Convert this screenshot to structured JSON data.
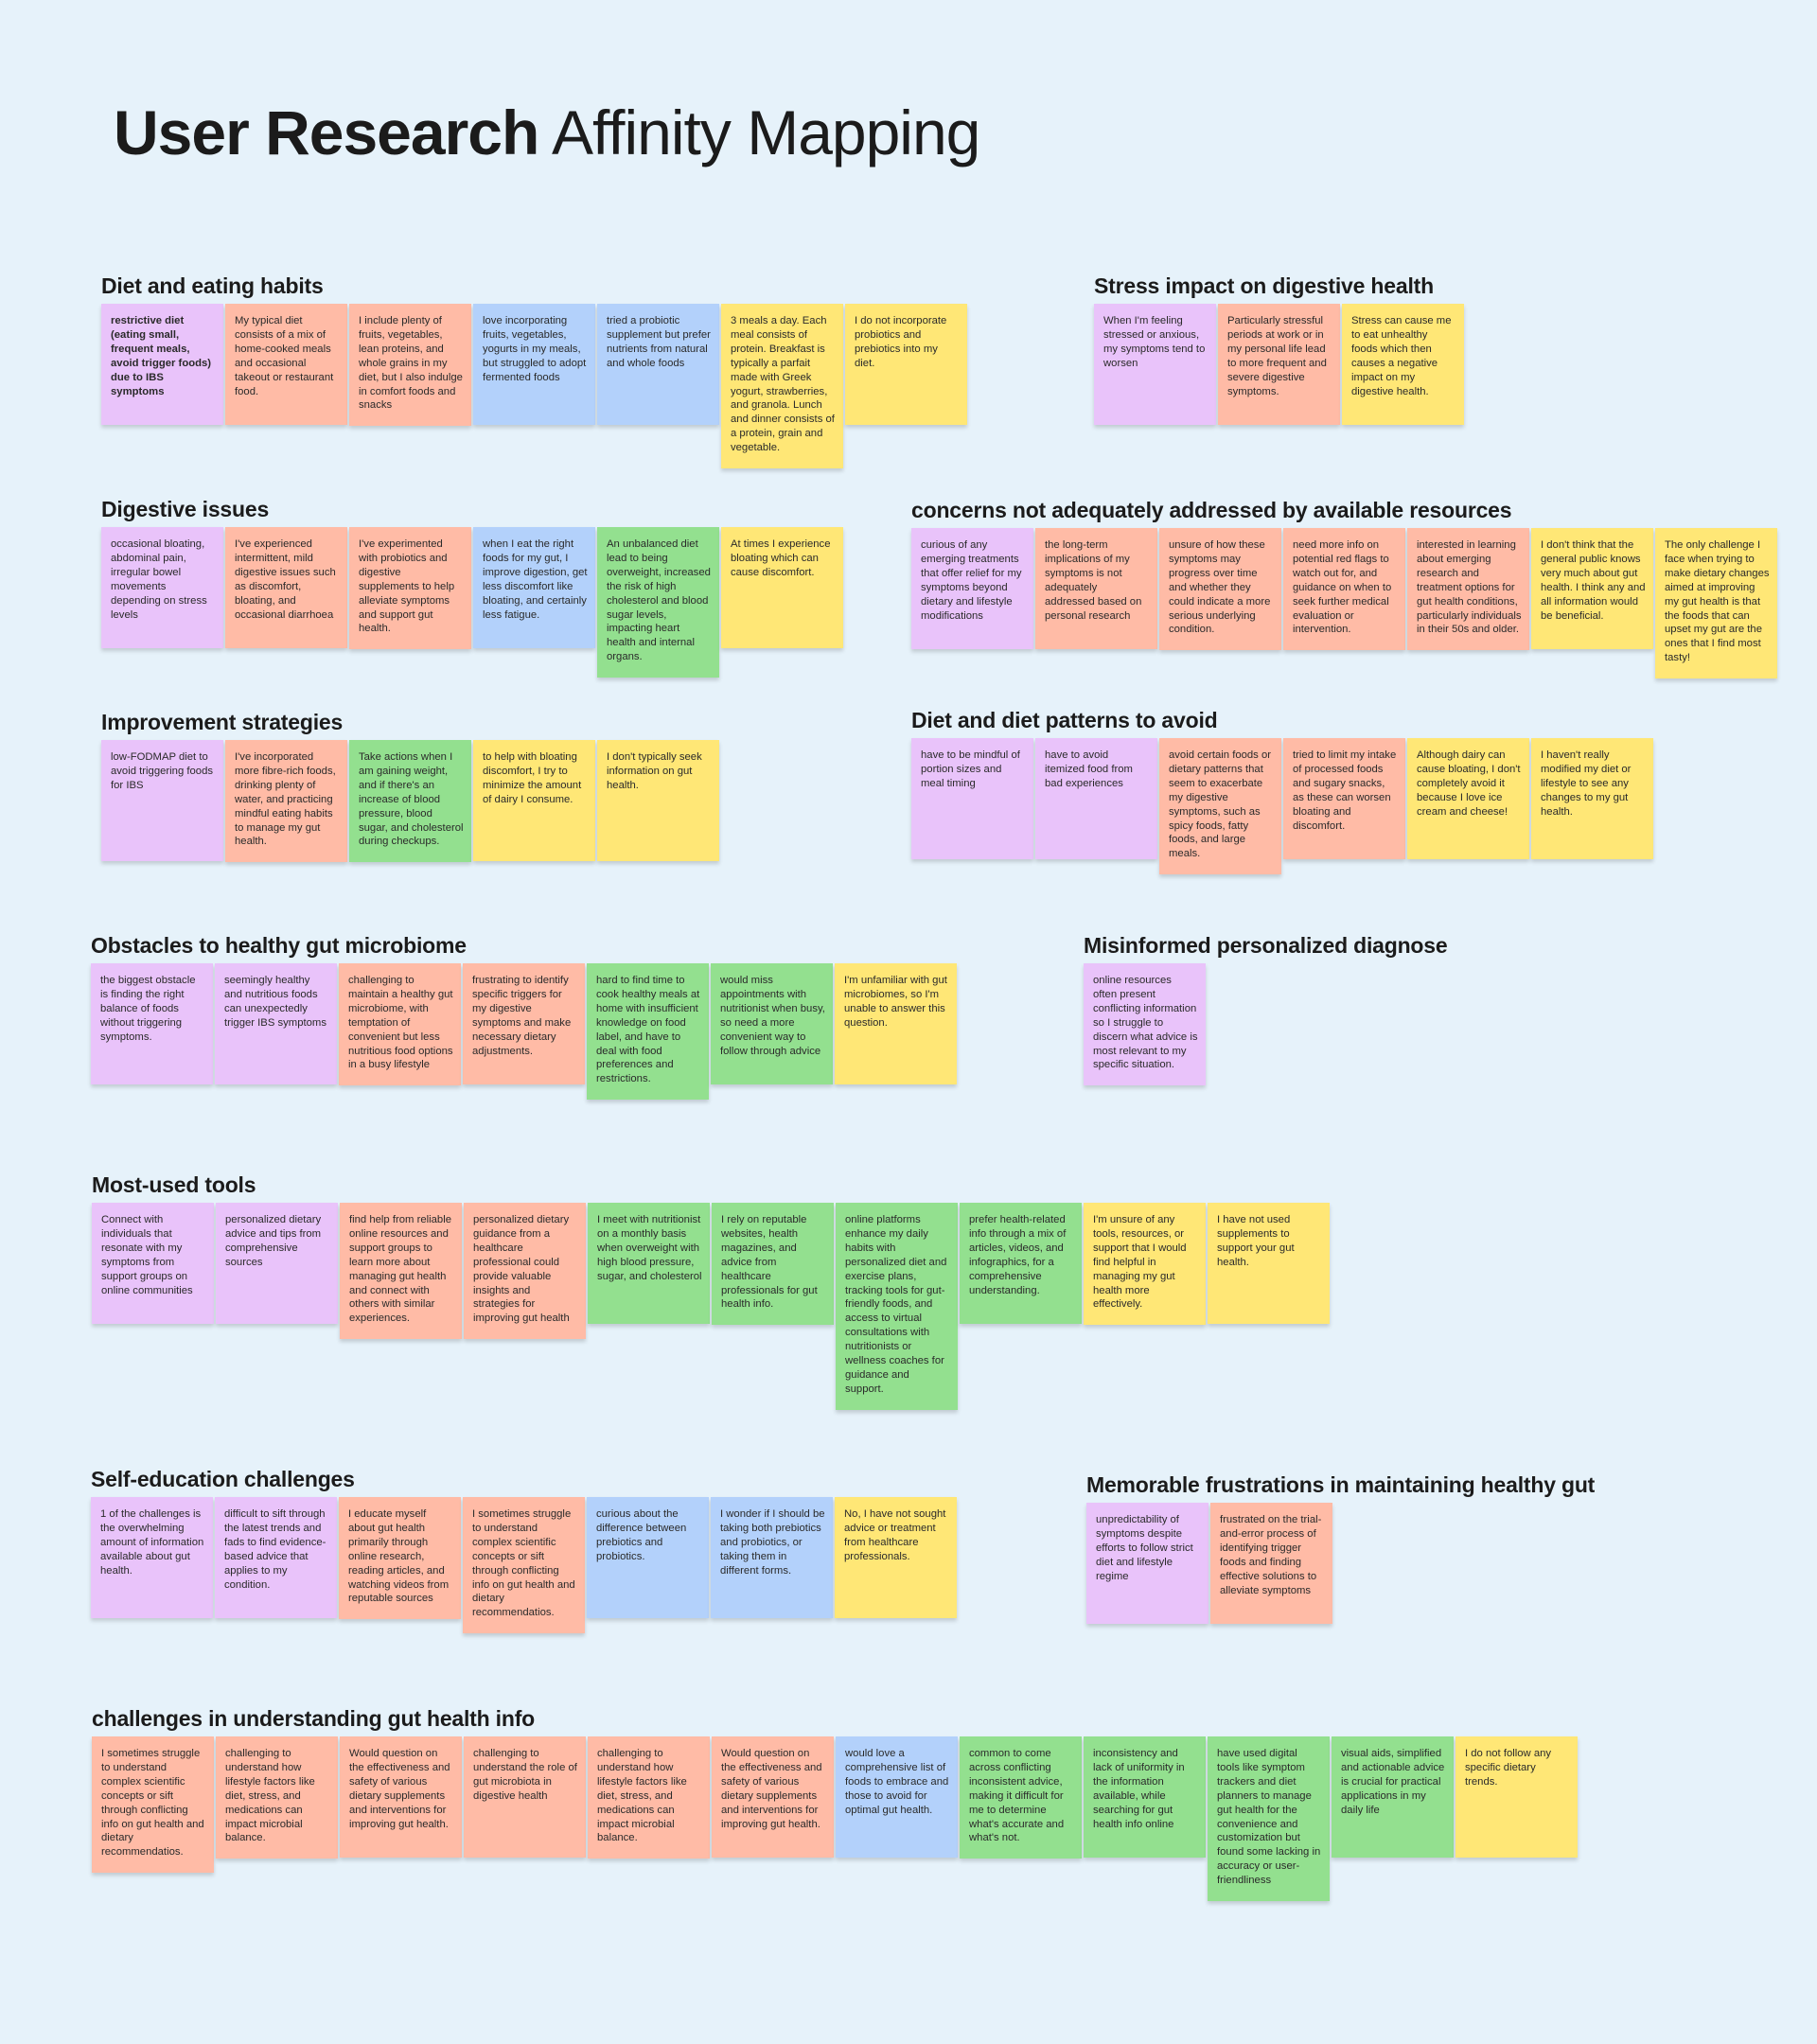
{
  "title": {
    "bold": "User Research",
    "rest": "Affinity Mapping"
  },
  "colors": {
    "background": "#e6f2fa",
    "purple": "#e9c3fa",
    "salmon": "#ffbba6",
    "blue": "#b3d1fb",
    "green": "#93e08f",
    "yellow": "#ffe776"
  },
  "clusters": [
    {
      "id": "diet-eating-habits",
      "heading": "Diet and eating habits",
      "notes": [
        {
          "color": "purple",
          "bold": true,
          "text": "restrictive diet (eating small, frequent meals, avoid trigger foods) due to IBS symptoms"
        },
        {
          "color": "salmon",
          "text": "My typical diet consists of a mix of home-cooked meals and occasional takeout or restaurant food."
        },
        {
          "color": "salmon",
          "text": "I include plenty of fruits, vegetables, lean proteins, and whole grains in my diet, but I also indulge in comfort foods and snacks"
        },
        {
          "color": "blue",
          "text": "love incorporating fruits, vegetables, yogurts in my meals, but struggled to adopt fermented foods"
        },
        {
          "color": "blue",
          "text": "tried a probiotic supplement but prefer nutrients from natural and whole foods"
        },
        {
          "color": "yellow",
          "text": "3 meals a day. Each meal consists of protein. Breakfast is typically a parfait made with Greek yogurt, strawberries, and granola. Lunch and dinner consists of a protein, grain and vegetable."
        },
        {
          "color": "yellow",
          "text": "I do not incorporate probiotics and prebiotics into my diet."
        }
      ]
    },
    {
      "id": "stress-impact",
      "heading": "Stress impact on digestive health",
      "notes": [
        {
          "color": "purple",
          "text": "When I'm feeling stressed or anxious, my symptoms tend to worsen"
        },
        {
          "color": "salmon",
          "text": "Particularly stressful periods at work or in my personal life lead to more frequent and severe digestive symptoms."
        },
        {
          "color": "yellow",
          "text": "Stress can cause me to eat unhealthy foods which then causes a negative impact on my digestive health."
        }
      ]
    },
    {
      "id": "digestive-issues",
      "heading": "Digestive issues",
      "notes": [
        {
          "color": "purple",
          "text": "occasional bloating, abdominal pain, irregular bowel movements depending on stress levels"
        },
        {
          "color": "salmon",
          "text": "I've experienced intermittent, mild digestive issues such as discomfort, bloating, and occasional diarrhoea"
        },
        {
          "color": "salmon",
          "text": "I've experimented with probiotics and digestive supplements to help alleviate symptoms and support gut health."
        },
        {
          "color": "blue",
          "text": "when I eat the right foods for my gut, I improve digestion, get less discomfort like bloating, and certainly less fatigue."
        },
        {
          "color": "green",
          "text": "An unbalanced diet lead to being overweight, increased the risk of high cholesterol and blood sugar levels, impacting heart health and internal organs."
        },
        {
          "color": "yellow",
          "text": "At times I experience bloating which can cause discomfort."
        }
      ]
    },
    {
      "id": "concerns-not-addressed",
      "heading": "concerns not adequately addressed by available resources",
      "notes": [
        {
          "color": "purple",
          "text": "curious of any emerging treatments that offer relief for my symptoms beyond dietary and lifestyle modifications"
        },
        {
          "color": "salmon",
          "text": "the long-term implications of my symptoms is not adequately addressed based on personal research"
        },
        {
          "color": "salmon",
          "text": "unsure of how these symptoms may progress over time and whether they could indicate a more serious underlying condition."
        },
        {
          "color": "salmon",
          "text": "need more info on potential red flags to watch out for, and guidance on when to seek further medical evaluation or intervention."
        },
        {
          "color": "salmon",
          "text": "interested in learning about emerging research and treatment options for gut health conditions, particularly individuals in their 50s and older."
        },
        {
          "color": "yellow",
          "text": "I don't think that the general public knows very much about gut health. I think any and all information would be beneficial."
        },
        {
          "color": "yellow",
          "text": "The only challenge I face when trying to make dietary changes aimed at improving my gut health is that the foods that can upset my gut are the ones that I find most tasty!"
        }
      ]
    },
    {
      "id": "improvement-strategies",
      "heading": "Improvement strategies",
      "notes": [
        {
          "color": "purple",
          "text": "low-FODMAP diet to avoid triggering foods for IBS"
        },
        {
          "color": "salmon",
          "text": "I've incorporated more fibre-rich foods, drinking plenty of water, and practicing mindful eating habits to manage my gut health."
        },
        {
          "color": "green",
          "text": "Take actions when I am gaining weight, and if there's an increase of blood pressure, blood sugar, and cholesterol during checkups."
        },
        {
          "color": "yellow",
          "text": "to help with bloating discomfort, I try to minimize the amount of dairy I consume."
        },
        {
          "color": "yellow",
          "text": "I don't typically seek information on gut health."
        }
      ]
    },
    {
      "id": "diet-patterns-avoid",
      "heading": "Diet and diet patterns to avoid",
      "notes": [
        {
          "color": "purple",
          "text": "have to be mindful of portion sizes and meal timing"
        },
        {
          "color": "purple",
          "text": "have to avoid itemized food from bad experiences"
        },
        {
          "color": "salmon",
          "text": "avoid certain foods or dietary patterns that seem to exacerbate my digestive symptoms, such as spicy foods, fatty foods, and large meals."
        },
        {
          "color": "salmon",
          "text": "tried to limit my intake of processed foods and sugary snacks, as these can worsen bloating and discomfort."
        },
        {
          "color": "yellow",
          "text": "Although dairy can cause bloating, I don't completely avoid it because I love ice cream and cheese!"
        },
        {
          "color": "yellow",
          "text": "I haven't really modified my diet or lifestyle to see any changes to my gut health."
        }
      ]
    },
    {
      "id": "obstacles-microbiome",
      "heading": "Obstacles to healthy gut microbiome",
      "notes": [
        {
          "color": "purple",
          "text": "the biggest obstacle is finding the right balance of foods without triggering symptoms."
        },
        {
          "color": "purple",
          "text": "seemingly healthy and nutritious foods can unexpectedly trigger IBS symptoms"
        },
        {
          "color": "salmon",
          "text": "challenging to maintain a healthy gut microbiome, with temptation of convenient but less nutritious food options in a busy lifestyle"
        },
        {
          "color": "salmon",
          "text": "frustrating to identify specific triggers for my digestive symptoms and make necessary dietary adjustments."
        },
        {
          "color": "green",
          "text": "hard to find time to cook healthy meals at home with insufficient knowledge on food label, and have to deal with food preferences and restrictions."
        },
        {
          "color": "green",
          "text": "would miss appointments with nutritionist when busy, so need a more convenient way to follow through advice"
        },
        {
          "color": "yellow",
          "text": "I'm unfamiliar with gut microbiomes, so I'm unable to answer this question."
        }
      ]
    },
    {
      "id": "misinformed-diagnose",
      "heading": "Misinformed personalized diagnose",
      "notes": [
        {
          "color": "purple",
          "text": "online resources often present conflicting information so I struggle to discern what advice is most relevant to my specific situation."
        }
      ]
    },
    {
      "id": "most-used-tools",
      "heading": "Most-used tools",
      "notes": [
        {
          "color": "purple",
          "text": "Connect with individuals that resonate with my symptoms from support groups on online communities"
        },
        {
          "color": "purple",
          "text": "personalized dietary advice and tips from comprehensive sources"
        },
        {
          "color": "salmon",
          "text": "find help from reliable online resources and support groups to learn more about managing gut health and connect with others with similar experiences."
        },
        {
          "color": "salmon",
          "text": "personalized dietary guidance from a healthcare professional could provide valuable insights and strategies for improving gut health"
        },
        {
          "color": "green",
          "text": "I meet with nutritionist on a monthly basis when overweight with high blood pressure, sugar, and cholesterol"
        },
        {
          "color": "green",
          "text": "I rely on reputable websites, health magazines, and advice from healthcare professionals for gut health info."
        },
        {
          "color": "green",
          "text": "online platforms enhance my daily habits with personalized diet and exercise plans, tracking tools for gut-friendly foods, and access to virtual consultations with nutritionists or wellness coaches for guidance and support."
        },
        {
          "color": "green",
          "text": "prefer health-related info through a mix of articles, videos, and infographics, for a comprehensive understanding."
        },
        {
          "color": "yellow",
          "text": "I'm unsure of any tools, resources, or support that I would find helpful in managing my gut health more effectively."
        },
        {
          "color": "yellow",
          "text": "I have not used supplements to support your gut health."
        }
      ]
    },
    {
      "id": "self-education",
      "heading": "Self-education challenges",
      "notes": [
        {
          "color": "purple",
          "text": "1 of the challenges is the overwhelming amount of information available about gut health."
        },
        {
          "color": "purple",
          "text": "difficult to sift through the latest trends and fads to find evidence-based advice that applies to my condition."
        },
        {
          "color": "salmon",
          "text": "I educate myself about gut health primarily through online research, reading articles, and watching videos from reputable sources"
        },
        {
          "color": "salmon",
          "text": "I sometimes struggle to understand complex scientific concepts or sift through conflicting info on gut health and dietary recommendatios."
        },
        {
          "color": "blue",
          "text": "curious about the difference between prebiotics and probiotics."
        },
        {
          "color": "blue",
          "text": "I wonder if I should be taking both prebiotics and probiotics, or taking them in different forms."
        },
        {
          "color": "yellow",
          "text": "No, I have not sought advice or treatment from healthcare professionals."
        }
      ]
    },
    {
      "id": "memorable-frustrations",
      "heading": "Memorable frustrations in maintaining healthy gut",
      "notes": [
        {
          "color": "purple",
          "text": "unpredictability of symptoms despite efforts to follow strict diet and lifestyle regime"
        },
        {
          "color": "salmon",
          "text": "frustrated on the trial-and-error process of identifying trigger foods and finding effective solutions to alleviate symptoms"
        }
      ]
    },
    {
      "id": "understanding-info",
      "heading": "challenges in understanding gut health info",
      "notes": [
        {
          "color": "salmon",
          "text": "I sometimes struggle to understand complex scientific concepts or sift through conflicting info on gut health and dietary recommendatios."
        },
        {
          "color": "salmon",
          "text": "challenging to understand how lifestyle factors like diet, stress, and medications can impact microbial balance."
        },
        {
          "color": "salmon",
          "text": "Would question on the effectiveness and safety of various dietary supplements and interventions for improving gut health."
        },
        {
          "color": "salmon",
          "text": "challenging to understand the role of gut microbiota in digestive health"
        },
        {
          "color": "salmon",
          "text": "challenging to understand how lifestyle factors like diet, stress, and medications can impact microbial balance."
        },
        {
          "color": "salmon",
          "text": "Would question on the effectiveness and safety of various dietary supplements and interventions for improving gut health."
        },
        {
          "color": "blue",
          "text": "would love a comprehensive list of foods to embrace and those to avoid for optimal gut health."
        },
        {
          "color": "green",
          "text": "common to come across conflicting inconsistent advice, making it difficult for me to determine what's accurate and what's not."
        },
        {
          "color": "green",
          "text": "inconsistency and lack of uniformity in the information available, while searching for gut health info online"
        },
        {
          "color": "green",
          "text": "have used digital tools like symptom trackers and diet planners to manage gut health for the convenience and customization but found some lacking in accuracy or user-friendliness"
        },
        {
          "color": "green",
          "text": "visual aids, simplified and actionable advice is crucial for practical applications in my daily life"
        },
        {
          "color": "yellow",
          "text": " I do not follow any specific dietary trends."
        }
      ]
    }
  ]
}
